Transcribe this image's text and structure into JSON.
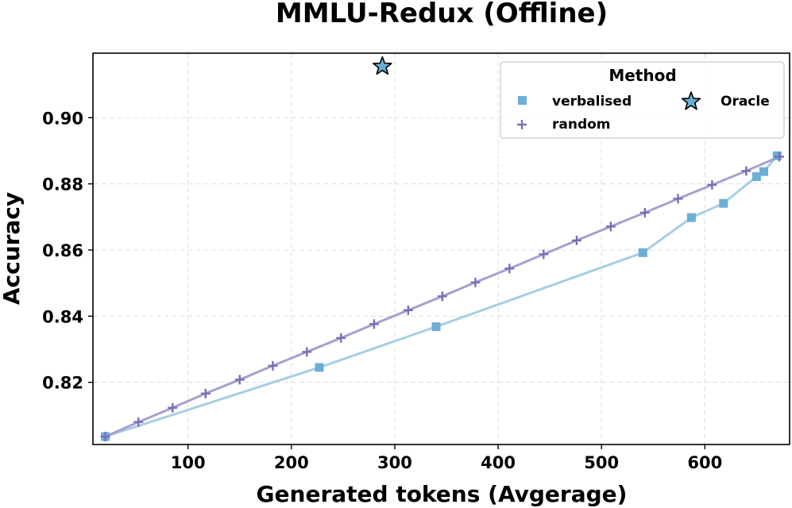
{
  "chart_data": {
    "type": "line",
    "title": "MMLU-Redux (Offline)",
    "xlabel": "Generated tokens (Avgerage)",
    "ylabel": "Accuracy",
    "xlim": [
      8,
      682
    ],
    "ylim": [
      0.8012,
      0.9195
    ],
    "xticks": [
      100,
      200,
      300,
      400,
      500,
      600
    ],
    "yticks": [
      0.82,
      0.84,
      0.86,
      0.88,
      0.9
    ],
    "ytick_labels": [
      "0.82",
      "0.84",
      "0.86",
      "0.88",
      "0.90"
    ],
    "grid": true,
    "legend": {
      "title": "Method",
      "position": "top-right"
    },
    "series": [
      {
        "name": "verbalised",
        "marker": "square",
        "line_color": "#a6cfe5",
        "marker_color": "#6baed6",
        "x": [
          20,
          227,
          340,
          540,
          587,
          618,
          650,
          657,
          670
        ],
        "y": [
          0.8036,
          0.8245,
          0.8368,
          0.8592,
          0.8698,
          0.8741,
          0.8822,
          0.8837,
          0.8885
        ]
      },
      {
        "name": "random",
        "marker": "plus",
        "line_color": "#a99fcf",
        "marker_color": "#7b6db5",
        "x": [
          20,
          52,
          85,
          117,
          150,
          182,
          215,
          248,
          280,
          313,
          346,
          378,
          411,
          444,
          476,
          509,
          542,
          574,
          607,
          640,
          672
        ],
        "y": [
          0.8036,
          0.808,
          0.8123,
          0.8166,
          0.8208,
          0.825,
          0.8292,
          0.8334,
          0.8376,
          0.8418,
          0.846,
          0.8502,
          0.8544,
          0.8587,
          0.8629,
          0.8671,
          0.8713,
          0.8755,
          0.8797,
          0.8839,
          0.8882
        ]
      },
      {
        "name": "Oracle",
        "marker": "star",
        "line_color": "none",
        "marker_color": "#6baed6",
        "x": [
          288
        ],
        "y": [
          0.9155
        ]
      }
    ]
  }
}
